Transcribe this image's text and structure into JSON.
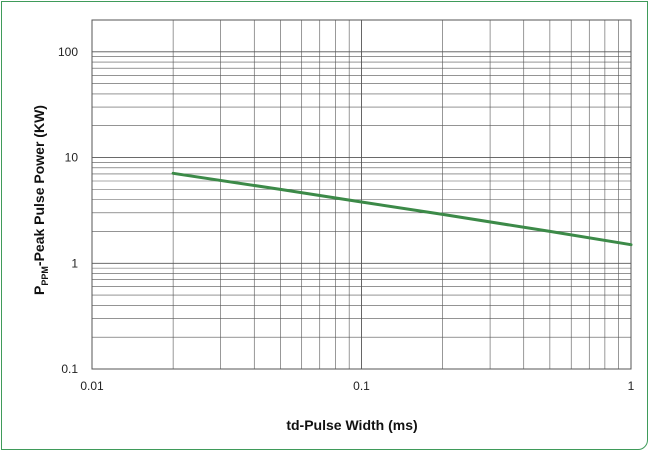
{
  "colors": {
    "frame": "#3f9b5a",
    "series": "#3c8a48",
    "grid": "#555555",
    "background": "#ffffff"
  },
  "chart_data": {
    "type": "line",
    "title": "",
    "xlabel": "td-Pulse Width (ms)",
    "ylabel_prefix": "P",
    "ylabel_subscript": "PPM",
    "ylabel_suffix": "-Peak Pulse Power (KW)",
    "x_scale": "log",
    "y_scale": "log",
    "xlim": [
      0.01,
      1
    ],
    "ylim": [
      0.1,
      200
    ],
    "x_ticks": [
      0.01,
      0.1,
      1
    ],
    "x_tick_labels": [
      "0.01",
      "0.1",
      "1"
    ],
    "y_ticks": [
      0.1,
      1,
      10,
      100
    ],
    "y_tick_labels": [
      "0.1",
      "1",
      "10",
      "100"
    ],
    "grid": true,
    "legend": "none",
    "series": [
      {
        "x": [
          0.02,
          0.05,
          0.1,
          0.2,
          0.5,
          1
        ],
        "y": [
          7.1,
          5.0,
          3.8,
          2.9,
          2.0,
          1.5
        ]
      }
    ]
  }
}
